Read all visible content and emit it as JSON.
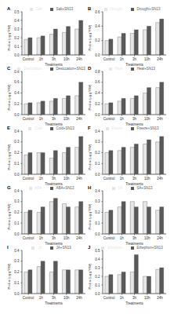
{
  "chart_data": [
    {
      "type": "bar",
      "panel": "A",
      "x_label": "Treatments",
      "y_label": "Proline (μg g⁻¹FW)",
      "categories": [
        "Control",
        "1h",
        "3h",
        "10h",
        "24h"
      ],
      "series": [
        {
          "name": "Salt",
          "color": "#e6e6e6",
          "values": [
            0.18,
            0.2,
            0.24,
            0.26,
            0.3
          ]
        },
        {
          "name": "Salt+SN13",
          "color": "#595959",
          "values": [
            0.2,
            0.22,
            0.3,
            0.33,
            0.4
          ]
        }
      ],
      "ylim": [
        0,
        0.5
      ],
      "yticks": [
        {
          "value": 0,
          "label": "0.0"
        },
        0.1,
        0.2,
        0.3,
        0.4,
        0.5
      ],
      "legend": "top"
    },
    {
      "type": "bar",
      "panel": "B",
      "x_label": "Treatments",
      "y_label": "Proline (μg g⁻¹FW)",
      "categories": [
        "Control",
        "1h",
        "3h",
        "10h",
        "24h"
      ],
      "series": [
        {
          "name": "Drought",
          "color": "#e6e6e6",
          "values": [
            0.2,
            0.25,
            0.3,
            0.35,
            0.45
          ]
        },
        {
          "name": "Drought+SN13",
          "color": "#595959",
          "values": [
            0.22,
            0.3,
            0.35,
            0.4,
            0.5
          ]
        }
      ],
      "ylim": [
        0,
        0.6
      ],
      "yticks": [
        {
          "value": 0,
          "label": "0.0"
        },
        0.2,
        0.4,
        0.6
      ],
      "legend": "top"
    },
    {
      "type": "bar",
      "panel": "C",
      "x_label": "Treatments",
      "y_label": "Proline (μg g⁻¹FW)",
      "categories": [
        "Control",
        "1h",
        "3h",
        "10h",
        "24h"
      ],
      "series": [
        {
          "name": "Desiccation",
          "color": "#e6e6e6",
          "values": [
            0.2,
            0.22,
            0.25,
            0.3,
            0.35
          ]
        },
        {
          "name": "Desiccation+SN13",
          "color": "#595959",
          "values": [
            0.22,
            0.25,
            0.3,
            0.35,
            0.6
          ]
        }
      ],
      "ylim": [
        0,
        0.8
      ],
      "yticks": [
        {
          "value": 0,
          "label": "0.0"
        },
        0.2,
        0.4,
        0.6,
        0.8
      ],
      "legend": "top"
    },
    {
      "type": "bar",
      "panel": "D",
      "x_label": "Treatments",
      "y_label": "Proline (μg g⁻¹FW)",
      "categories": [
        "Control",
        "1h",
        "3h",
        "10h",
        "24h"
      ],
      "series": [
        {
          "name": "Heat",
          "color": "#e6e6e6",
          "values": [
            0.2,
            0.25,
            0.3,
            0.4,
            0.5
          ]
        },
        {
          "name": "Heat+SN13",
          "color": "#595959",
          "values": [
            0.22,
            0.3,
            0.35,
            0.5,
            0.6
          ]
        }
      ],
      "ylim": [
        0,
        0.8
      ],
      "yticks": [
        {
          "value": 0,
          "label": "0.0"
        },
        0.2,
        0.4,
        0.6,
        0.8
      ],
      "legend": "top"
    },
    {
      "type": "bar",
      "panel": "E",
      "x_label": "Treatments",
      "y_label": "Proline (μg g⁻¹FW)",
      "categories": [
        "Control",
        "1h",
        "3h",
        "10h",
        "24h"
      ],
      "series": [
        {
          "name": "Cold",
          "color": "#e6e6e6",
          "values": [
            0.18,
            0.2,
            0.15,
            0.2,
            0.25
          ]
        },
        {
          "name": "Cold+SN13",
          "color": "#595959",
          "values": [
            0.2,
            0.2,
            0.22,
            0.25,
            0.35
          ]
        }
      ],
      "ylim": [
        0,
        0.4
      ],
      "yticks": [
        {
          "value": 0,
          "label": "0.0"
        },
        0.1,
        0.2,
        0.3,
        0.4
      ],
      "legend": "top"
    },
    {
      "type": "bar",
      "panel": "F",
      "x_label": "Treatments",
      "y_label": "Proline (μg g⁻¹FW)",
      "categories": [
        "Control",
        "1h",
        "3h",
        "10h",
        "24h"
      ],
      "series": [
        {
          "name": "Freeze",
          "color": "#e6e6e6",
          "values": [
            0.2,
            0.22,
            0.25,
            0.28,
            0.3
          ]
        },
        {
          "name": "Freeze+SN13",
          "color": "#595959",
          "values": [
            0.22,
            0.25,
            0.28,
            0.32,
            0.35
          ]
        }
      ],
      "ylim": [
        0,
        0.4
      ],
      "yticks": [
        {
          "value": 0,
          "label": "0.0"
        },
        0.1,
        0.2,
        0.3,
        0.4
      ],
      "legend": "top"
    },
    {
      "type": "bar",
      "panel": "G",
      "x_label": "Treatments",
      "y_label": "Proline (μg g⁻¹FW)",
      "categories": [
        "Control",
        "1h",
        "3h",
        "10h",
        "24h"
      ],
      "series": [
        {
          "name": "ABA",
          "color": "#e6e6e6",
          "values": [
            0.2,
            0.2,
            0.3,
            0.28,
            0.25
          ]
        },
        {
          "name": "ABA+SN13",
          "color": "#595959",
          "values": [
            0.22,
            0.25,
            0.33,
            0.25,
            0.3
          ]
        }
      ],
      "ylim": [
        0,
        0.4
      ],
      "yticks": [
        {
          "value": 0,
          "label": "0.0"
        },
        0.1,
        0.2,
        0.3,
        0.4
      ],
      "legend": "top"
    },
    {
      "type": "bar",
      "panel": "H",
      "x_label": "Treatments",
      "y_label": "Proline (μg g⁻¹FW)",
      "categories": [
        "Control",
        "1h",
        "3h",
        "10h",
        "24h"
      ],
      "series": [
        {
          "name": "SA",
          "color": "#e6e6e6",
          "values": [
            0.2,
            0.25,
            0.3,
            0.3,
            0.22
          ]
        },
        {
          "name": "SA+SN13",
          "color": "#595959",
          "values": [
            0.22,
            0.3,
            0.25,
            0.25,
            0.25
          ]
        }
      ],
      "ylim": [
        0,
        0.4
      ],
      "yticks": [
        {
          "value": 0,
          "label": "0.0"
        },
        0.1,
        0.2,
        0.3,
        0.4
      ],
      "legend": "top"
    },
    {
      "type": "bar",
      "panel": "I",
      "x_label": "Treatments",
      "y_label": "Proline (μg g⁻¹FW)",
      "categories": [
        "Control",
        "1h",
        "3h",
        "10h",
        "24h"
      ],
      "series": [
        {
          "name": "JA",
          "color": "#e6e6e6",
          "values": [
            0.2,
            0.25,
            0.2,
            0.22,
            0.22
          ]
        },
        {
          "name": "JA+SN13",
          "color": "#595959",
          "values": [
            0.22,
            0.3,
            0.3,
            0.22,
            0.22
          ]
        }
      ],
      "ylim": [
        0,
        0.4
      ],
      "yticks": [
        {
          "value": 0,
          "label": "0.0"
        },
        0.1,
        0.2,
        0.3,
        0.4
      ],
      "legend": "top"
    },
    {
      "type": "bar",
      "panel": "J",
      "x_label": "Treatments",
      "y_label": "Proline (μg g⁻¹FW)",
      "categories": [
        "Control",
        "1h",
        "3h",
        "10h",
        "24h"
      ],
      "series": [
        {
          "name": "Ethephon",
          "color": "#e6e6e6",
          "values": [
            0.2,
            0.22,
            0.25,
            0.2,
            0.28
          ]
        },
        {
          "name": "Ethephon+SN13",
          "color": "#595959",
          "values": [
            0.22,
            0.25,
            0.45,
            0.2,
            0.3
          ]
        }
      ],
      "ylim": [
        0,
        0.5
      ],
      "yticks": [
        {
          "value": 0,
          "label": "0.0"
        },
        0.1,
        0.2,
        0.3,
        0.4,
        0.5
      ],
      "legend": "top"
    }
  ]
}
